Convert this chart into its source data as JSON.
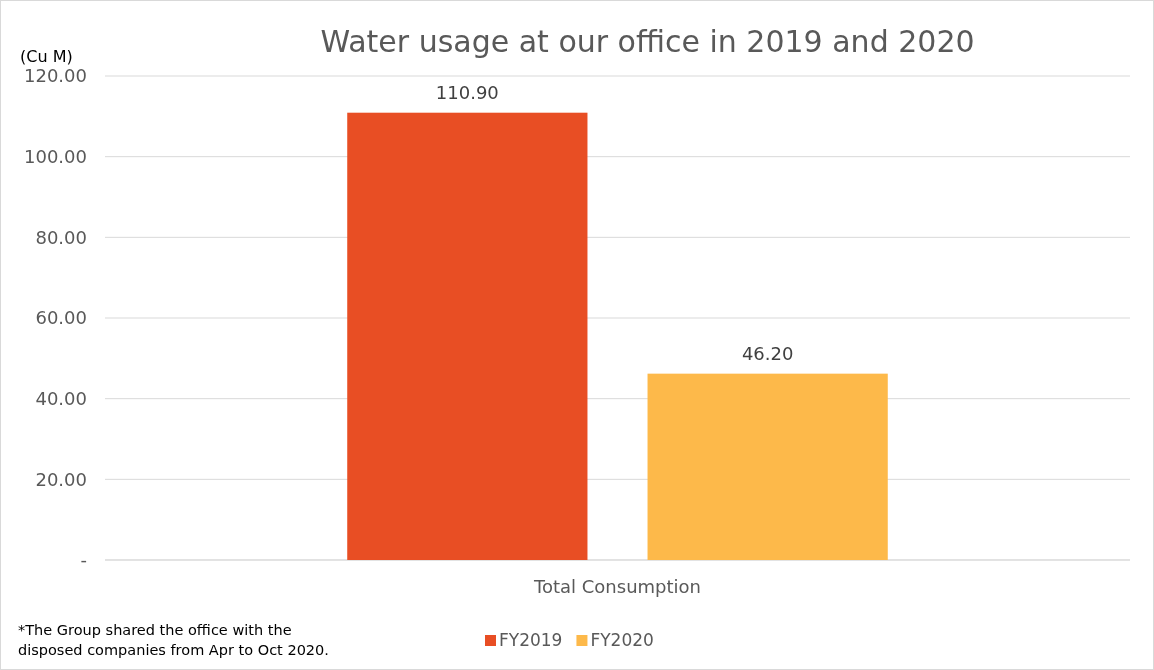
{
  "chart_data": {
    "type": "bar",
    "title": "Water usage at our office in 2019 and 2020",
    "ylabel": "(Cu M)",
    "categories": [
      "Total Consumption"
    ],
    "series": [
      {
        "name": "FY2019",
        "color": "#e84e24",
        "values": [
          110.9
        ],
        "value_labels": [
          "110.90"
        ]
      },
      {
        "name": "FY2020",
        "color": "#fdb94a",
        "values": [
          46.2
        ],
        "value_labels": [
          "46.20"
        ]
      }
    ],
    "ylim": [
      0,
      120
    ],
    "yticks": [
      {
        "value": 0,
        "label": "-"
      },
      {
        "value": 20,
        "label": "20.00"
      },
      {
        "value": 40,
        "label": "40.00"
      },
      {
        "value": 60,
        "label": "60.00"
      },
      {
        "value": 80,
        "label": "80.00"
      },
      {
        "value": 100,
        "label": "100.00"
      },
      {
        "value": 120,
        "label": "120.00"
      }
    ],
    "grid": "y",
    "legend": "bottom",
    "annotations": [
      "*The Group shared the office with the disposed companies from Apr to Oct 2020."
    ]
  }
}
